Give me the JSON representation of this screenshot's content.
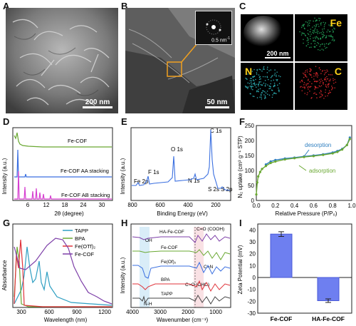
{
  "panels": {
    "A": {
      "label": "A",
      "scale": "200 nm"
    },
    "B": {
      "label": "B",
      "scale": "50 nm",
      "inset_scale": "0.5 nm"
    },
    "C": {
      "label": "C",
      "scale": "200 nm",
      "maps": [
        "Fe",
        "N",
        "C"
      ]
    },
    "D": {
      "label": "D"
    },
    "E": {
      "label": "E"
    },
    "F": {
      "label": "F"
    },
    "G": {
      "label": "G"
    },
    "H": {
      "label": "H"
    },
    "I": {
      "label": "I"
    }
  },
  "colors": {
    "green": "#6aa832",
    "blue": "#3a6fe0",
    "magenta": "#d63fd0",
    "red": "#e0333a",
    "purple": "#7d3fa8",
    "teal": "#2f9fc2",
    "gray": "#444444"
  },
  "chart_data": [
    {
      "id": "D",
      "type": "line",
      "xlabel": "2θ (degree)",
      "ylabel": "Intensity (a.u.)",
      "xticks": [
        "6",
        "12",
        "18",
        "24",
        "30"
      ],
      "xlim": [
        2,
        35
      ],
      "series": [
        {
          "name": "Fe-COF",
          "color": "#6aa832"
        },
        {
          "name": "Fe-COF AA stacking",
          "color": "#3a6fe0"
        },
        {
          "name": "Fe-COF AB stacking",
          "color": "#d63fd0"
        }
      ]
    },
    {
      "id": "E",
      "type": "line",
      "xlabel": "Binding Energy (eV)",
      "ylabel": "Intensity (a.u.)",
      "xticks": [
        "800",
        "600",
        "400",
        "200"
      ],
      "xlim": [
        800,
        100
      ],
      "annotations": [
        "Fe 2p",
        "F 1s",
        "O 1s",
        "N 1s",
        "C 1s",
        "S 2s",
        "S 2p"
      ]
    },
    {
      "id": "F",
      "type": "line",
      "xlabel": "Relative Pressure (P/P₀)",
      "ylabel": "N₂ uptake (cm³ g⁻¹ STP)",
      "xlim": [
        0,
        1
      ],
      "ylim": [
        0,
        250
      ],
      "xticks": [
        "0.0",
        "0.2",
        "0.4",
        "0.6",
        "0.8",
        "1.0"
      ],
      "yticks": [
        "0",
        "50",
        "100",
        "150",
        "200",
        "250"
      ],
      "series": [
        {
          "name": "desorption",
          "color": "#2f7fc0",
          "x": [
            0.98,
            0.95,
            0.9,
            0.85,
            0.8,
            0.7,
            0.6,
            0.5,
            0.4,
            0.3,
            0.2,
            0.15,
            0.1
          ],
          "y": [
            210,
            185,
            172,
            165,
            160,
            154,
            150,
            147,
            143,
            140,
            135,
            130,
            120
          ]
        },
        {
          "name": "adsorption",
          "color": "#6aa832",
          "x": [
            0.0,
            0.01,
            0.02,
            0.04,
            0.06,
            0.1,
            0.15,
            0.2,
            0.3,
            0.4,
            0.5,
            0.6,
            0.7,
            0.8,
            0.85,
            0.9,
            0.95,
            0.98
          ],
          "y": [
            20,
            60,
            80,
            95,
            105,
            115,
            125,
            130,
            137,
            141,
            145,
            148,
            152,
            157,
            162,
            170,
            185,
            205
          ]
        }
      ]
    },
    {
      "id": "G",
      "type": "line",
      "xlabel": "Wavelength (nm)",
      "ylabel": "Absorbance",
      "xticks": [
        "300",
        "600",
        "900",
        "1200"
      ],
      "xlim": [
        200,
        1400
      ],
      "series": [
        {
          "name": "TAPP",
          "color": "#2f9fc2"
        },
        {
          "name": "BPA",
          "color": "#6aa832"
        },
        {
          "name": "Fe(OTf)₂",
          "color": "#e0333a"
        },
        {
          "name": "Fe-COF",
          "color": "#7d3fa8"
        }
      ]
    },
    {
      "id": "H",
      "type": "line",
      "xlabel": "Wavenumber (cm⁻¹)",
      "ylabel": "Intensity (a.u.)",
      "xticks": [
        "4000",
        "3000",
        "2000",
        "1000"
      ],
      "xlim": [
        4000,
        400
      ],
      "series": [
        {
          "name": "HA-Fe-COF",
          "color": "#7d3fa8"
        },
        {
          "name": "Fe-COF",
          "color": "#6aa832"
        },
        {
          "name": "Fe(Of)₂",
          "color": "#3a6fe0"
        },
        {
          "name": "BPA",
          "color": "#e0333a"
        },
        {
          "name": "TAPP",
          "color": "#444444"
        }
      ],
      "annotations": [
        "OH",
        "C=O (COOH)",
        "C=N",
        "C=O (CHO)",
        "N-H"
      ]
    },
    {
      "id": "I",
      "type": "bar",
      "ylabel": "Zeta Potential (mV)",
      "categories": [
        "Fe-COF",
        "HA-Fe-COF"
      ],
      "values": [
        36.5,
        -19.5
      ],
      "errors": [
        2,
        1.5
      ],
      "ylim": [
        -30,
        45
      ],
      "yticks": [
        "-30",
        "-20",
        "-10",
        "0",
        "10",
        "20",
        "30",
        "40"
      ]
    }
  ]
}
